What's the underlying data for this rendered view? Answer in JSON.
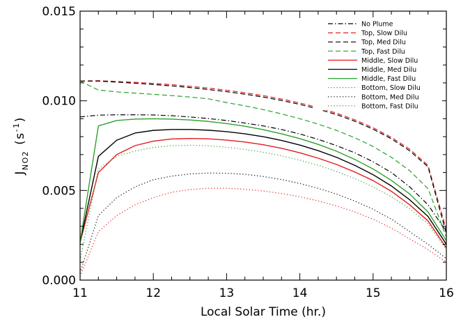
{
  "chart_data": {
    "type": "line",
    "xlabel": "Local Solar Time (hr.)",
    "ylabel_main": "J",
    "ylabel_sub": "NO2",
    "ylabel_unit_pre": "(s",
    "ylabel_unit_exp": "-1",
    "ylabel_unit_post": ")",
    "xlim": [
      11,
      16
    ],
    "ylim": [
      0,
      0.015
    ],
    "xticks": [
      11,
      12,
      13,
      14,
      15,
      16
    ],
    "xtick_labels": [
      "11",
      "12",
      "13",
      "14",
      "15",
      "16"
    ],
    "yticks": [
      0,
      0.005,
      0.01,
      0.015
    ],
    "ytick_labels": [
      "0.000",
      "0.005",
      "0.010",
      "0.015"
    ],
    "legend_position": "top-right",
    "grid": false,
    "x": [
      11.0,
      11.25,
      11.5,
      11.75,
      12.0,
      12.25,
      12.5,
      12.75,
      13.0,
      13.25,
      13.5,
      13.75,
      14.0,
      14.25,
      14.5,
      14.75,
      15.0,
      15.25,
      15.5,
      15.75,
      16.0
    ],
    "series": [
      {
        "name": "No Plume",
        "color": "#000000",
        "dash": "dashdot",
        "values": [
          0.0091,
          0.0092,
          0.00922,
          0.00922,
          0.00921,
          0.00917,
          0.0091,
          0.00901,
          0.0089,
          0.00876,
          0.0086,
          0.0084,
          0.00815,
          0.00785,
          0.0075,
          0.0071,
          0.0066,
          0.006,
          0.0052,
          0.0042,
          0.0027
        ]
      },
      {
        "name": "Top, Slow Dilu",
        "color": "#e41a1c",
        "dash": "dash",
        "values": [
          0.0111,
          0.01112,
          0.01108,
          0.01103,
          0.01097,
          0.0109,
          0.01081,
          0.01071,
          0.01059,
          0.01045,
          0.01029,
          0.0101,
          0.00988,
          0.00962,
          0.00931,
          0.00894,
          0.0085,
          0.00796,
          0.0073,
          0.0064,
          0.0028
        ]
      },
      {
        "name": "Top, Med Dilu",
        "color": "#000000",
        "dash": "dash",
        "values": [
          0.0111,
          0.0111,
          0.01104,
          0.01098,
          0.01091,
          0.01083,
          0.01074,
          0.01063,
          0.01051,
          0.01037,
          0.01021,
          0.01002,
          0.0098,
          0.00954,
          0.00923,
          0.00886,
          0.00842,
          0.00788,
          0.00721,
          0.00632,
          0.0026
        ]
      },
      {
        "name": "Top, Fast Dilu",
        "color": "#2ca02c",
        "dash": "dash",
        "values": [
          0.0111,
          0.0106,
          0.0105,
          0.01043,
          0.01036,
          0.01029,
          0.01021,
          0.01011,
          0.0099,
          0.00972,
          0.00951,
          0.00927,
          0.009,
          0.0087,
          0.00835,
          0.00794,
          0.00745,
          0.00685,
          0.0061,
          0.0051,
          0.0024
        ]
      },
      {
        "name": "Middle, Slow Dilu",
        "color": "#e41a1c",
        "dash": "solid",
        "values": [
          0.0021,
          0.006,
          0.007,
          0.0075,
          0.00775,
          0.00787,
          0.0079,
          0.00788,
          0.00781,
          0.0077,
          0.00755,
          0.00735,
          0.0071,
          0.0068,
          0.00645,
          0.00603,
          0.00555,
          0.00495,
          0.0042,
          0.0033,
          0.0018
        ]
      },
      {
        "name": "Middle, Med Dilu",
        "color": "#000000",
        "dash": "solid",
        "values": [
          0.0021,
          0.0069,
          0.0078,
          0.0082,
          0.00835,
          0.0084,
          0.0084,
          0.00836,
          0.00828,
          0.00816,
          0.008,
          0.00779,
          0.00753,
          0.00722,
          0.00685,
          0.0064,
          0.00588,
          0.00525,
          0.00448,
          0.00355,
          0.002
        ]
      },
      {
        "name": "Middle, Fast Dilu",
        "color": "#2ca02c",
        "dash": "solid",
        "values": [
          0.0021,
          0.0086,
          0.0089,
          0.00898,
          0.009,
          0.00898,
          0.00893,
          0.00885,
          0.00873,
          0.00858,
          0.00839,
          0.00816,
          0.00789,
          0.00757,
          0.00719,
          0.00673,
          0.0062,
          0.00556,
          0.0048,
          0.0038,
          0.0022
        ]
      },
      {
        "name": "Bottom, Slow Dilu",
        "color": "#e41a1c",
        "dash": "dot",
        "values": [
          0.0002,
          0.0027,
          0.0036,
          0.0042,
          0.0046,
          0.0049,
          0.00505,
          0.00512,
          0.00512,
          0.00507,
          0.00497,
          0.00483,
          0.00465,
          0.00442,
          0.00414,
          0.0038,
          0.0034,
          0.0029,
          0.0023,
          0.0017,
          0.001
        ]
      },
      {
        "name": "Bottom, Med Dilu",
        "color": "#000000",
        "dash": "dot",
        "values": [
          0.0004,
          0.0036,
          0.0046,
          0.0052,
          0.0056,
          0.0058,
          0.00592,
          0.00597,
          0.00596,
          0.0059,
          0.00578,
          0.00561,
          0.00539,
          0.00512,
          0.0048,
          0.00441,
          0.00395,
          0.0034,
          0.0027,
          0.002,
          0.0012
        ]
      },
      {
        "name": "Bottom, Fast Dilu",
        "color": "#2ca02c",
        "dash": "dot",
        "values": [
          0.0011,
          0.0062,
          0.0069,
          0.0072,
          0.0074,
          0.00749,
          0.00752,
          0.00749,
          0.00741,
          0.00729,
          0.00713,
          0.00693,
          0.00669,
          0.0064,
          0.00606,
          0.00566,
          0.0052,
          0.00465,
          0.00398,
          0.00315,
          0.0017
        ]
      }
    ]
  }
}
